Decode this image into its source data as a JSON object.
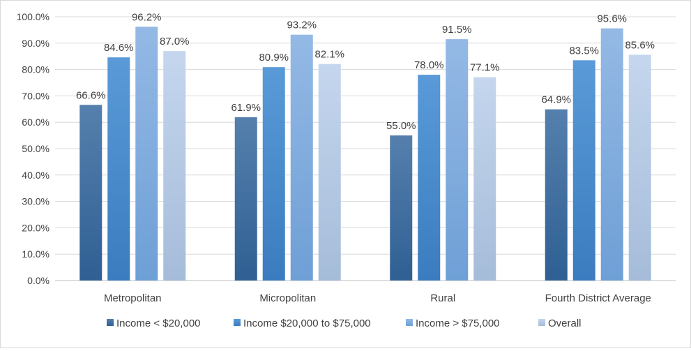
{
  "chart_data": {
    "type": "bar",
    "title": "",
    "xlabel": "",
    "ylabel": "",
    "categories": [
      "Metropolitan",
      "Micropolitan",
      "Rural",
      "Fourth District Average"
    ],
    "series": [
      {
        "name": "Income < $20,000",
        "values": [
          66.6,
          61.9,
          55.0,
          64.9
        ],
        "color_top": "#5580ad",
        "color_bottom": "#2f5f93"
      },
      {
        "name": "Income $20,000 to $75,000",
        "values": [
          84.6,
          80.9,
          78.0,
          83.5
        ],
        "color_top": "#5a9ad8",
        "color_bottom": "#3a7cbf"
      },
      {
        "name": "Income > $75,000",
        "values": [
          96.2,
          93.2,
          91.5,
          95.6
        ],
        "color_top": "#94b9e5",
        "color_bottom": "#6e9fd6"
      },
      {
        "name": "Overall",
        "values": [
          87.0,
          82.1,
          77.1,
          85.6
        ],
        "color_top": "#c5d6ee",
        "color_bottom": "#a5bcd9"
      }
    ],
    "data_labels": [
      [
        "66.6%",
        "61.9%",
        "55.0%",
        "64.9%"
      ],
      [
        "84.6%",
        "80.9%",
        "78.0%",
        "83.5%"
      ],
      [
        "96.2%",
        "93.2%",
        "91.5%",
        "95.6%"
      ],
      [
        "87.0%",
        "82.1%",
        "77.1%",
        "85.6%"
      ]
    ],
    "ylim": [
      0,
      100
    ],
    "yticks": [
      0,
      10,
      20,
      30,
      40,
      50,
      60,
      70,
      80,
      90,
      100
    ],
    "ytick_labels": [
      "0.0%",
      "10.0%",
      "20.0%",
      "30.0%",
      "40.0%",
      "50.0%",
      "60.0%",
      "70.0%",
      "80.0%",
      "90.0%",
      "100.0%"
    ],
    "grid": true,
    "legend_position": "bottom",
    "colors": {
      "grid": "#d9d9d9",
      "text": "#404040",
      "border": "#d9d9d9"
    }
  }
}
